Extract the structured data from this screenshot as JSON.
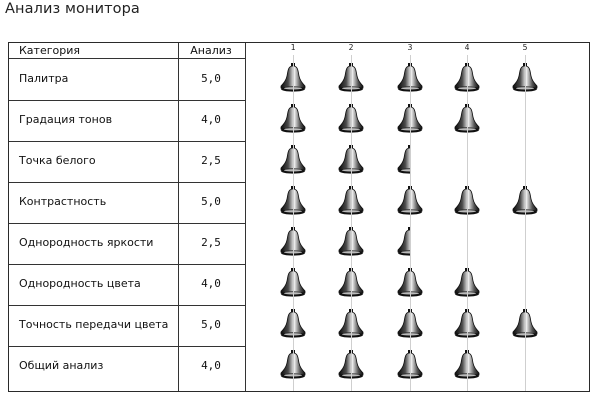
{
  "title": "Анализ монитора",
  "columns": {
    "category": "Категория",
    "score": "Анализ"
  },
  "scale_ticks": [
    "1",
    "2",
    "3",
    "4",
    "5"
  ],
  "rows": [
    {
      "category": "Палитра",
      "score": "5,0",
      "value": 5.0
    },
    {
      "category": "Градация тонов",
      "score": "4,0",
      "value": 4.0
    },
    {
      "category": "Точка белого",
      "score": "2,5",
      "value": 2.5
    },
    {
      "category": "Контрастность",
      "score": "5,0",
      "value": 5.0
    },
    {
      "category": "Однородность яркости",
      "score": "2,5",
      "value": 2.5
    },
    {
      "category": "Однородность цвета",
      "score": "4,0",
      "value": 4.0
    },
    {
      "category": "Точность передачи цвета",
      "score": "5,0",
      "value": 5.0
    },
    {
      "category": "Общий анализ",
      "score": "4,0",
      "value": 4.0
    }
  ],
  "rating_icon": "bell-icon",
  "colors": {
    "border": "#333333",
    "gridline": "#cfcfcf",
    "bell_dark": "#111111",
    "bell_light": "#d8d8d8"
  }
}
